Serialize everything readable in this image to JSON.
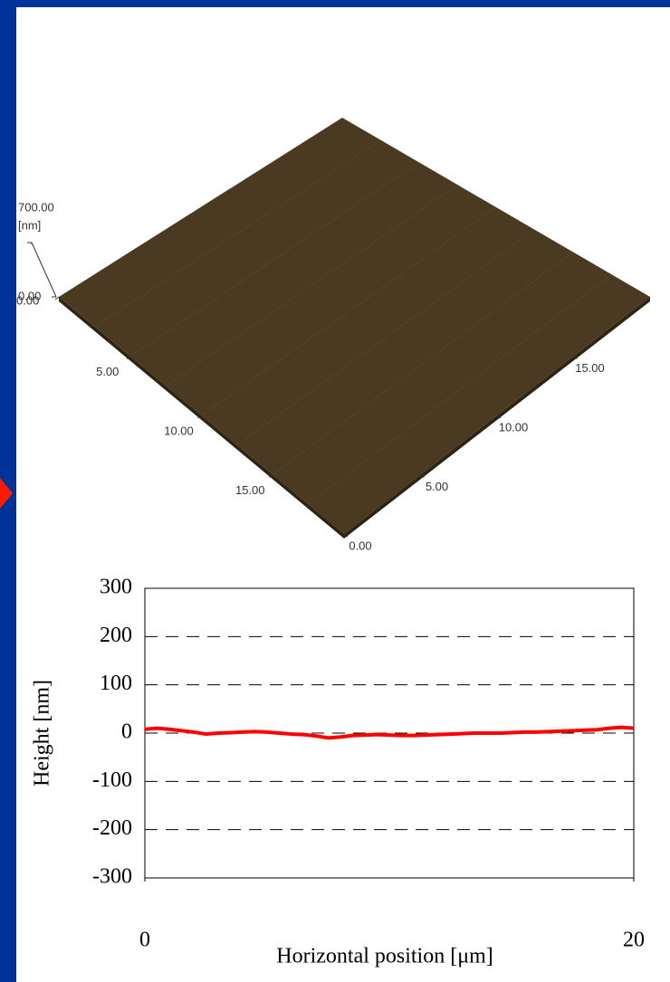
{
  "chart_data": [
    {
      "type": "surface",
      "zlabel": "[nm]",
      "zlim": [
        0,
        700
      ],
      "zticks": [
        {
          "value": 0,
          "label": "0.00"
        },
        {
          "value": 700,
          "label": "700.00"
        }
      ],
      "xlim": [
        0,
        20
      ],
      "xticks": [
        {
          "value": 0,
          "label": "0.00"
        },
        {
          "value": 5,
          "label": "5.00"
        },
        {
          "value": 10,
          "label": "10.00"
        },
        {
          "value": 15,
          "label": "15.00"
        }
      ],
      "ylim": [
        0,
        20
      ],
      "yticks": [
        {
          "value": 0,
          "label": "0.00"
        },
        {
          "value": 5,
          "label": "5.00"
        },
        {
          "value": 10,
          "label": "10.00"
        },
        {
          "value": 15,
          "label": "15.00"
        }
      ],
      "color": "#4a3a22"
    },
    {
      "type": "line",
      "xlabel": "Horizontal position [μm]",
      "ylabel": "Height [nm]",
      "x": [
        0,
        0.5,
        1,
        1.5,
        2,
        2.5,
        3,
        3.5,
        4,
        4.5,
        5,
        5.5,
        6,
        6.5,
        7,
        7.5,
        8,
        8.5,
        9,
        9.5,
        10,
        10.5,
        11,
        11.5,
        12,
        12.5,
        13,
        13.5,
        14,
        14.5,
        15,
        15.5,
        16,
        16.5,
        17,
        17.5,
        18,
        18.5,
        19,
        19.5,
        20
      ],
      "series": [
        {
          "color": "#ff0000",
          "values": [
            8,
            10,
            8,
            5,
            2,
            -2,
            0,
            1,
            2,
            3,
            2,
            0,
            -2,
            -3,
            -6,
            -10,
            -8,
            -5,
            -4,
            -3,
            -4,
            -5,
            -5,
            -4,
            -3,
            -2,
            -1,
            0,
            0,
            0,
            1,
            2,
            2,
            3,
            4,
            5,
            6,
            7,
            10,
            12,
            10
          ]
        }
      ],
      "xlim": [
        0,
        20
      ],
      "xticks": [
        0,
        20
      ],
      "ylim": [
        -300,
        300
      ],
      "yticks": [
        -300,
        -200,
        -100,
        0,
        100,
        200,
        300
      ],
      "grid": true
    }
  ]
}
